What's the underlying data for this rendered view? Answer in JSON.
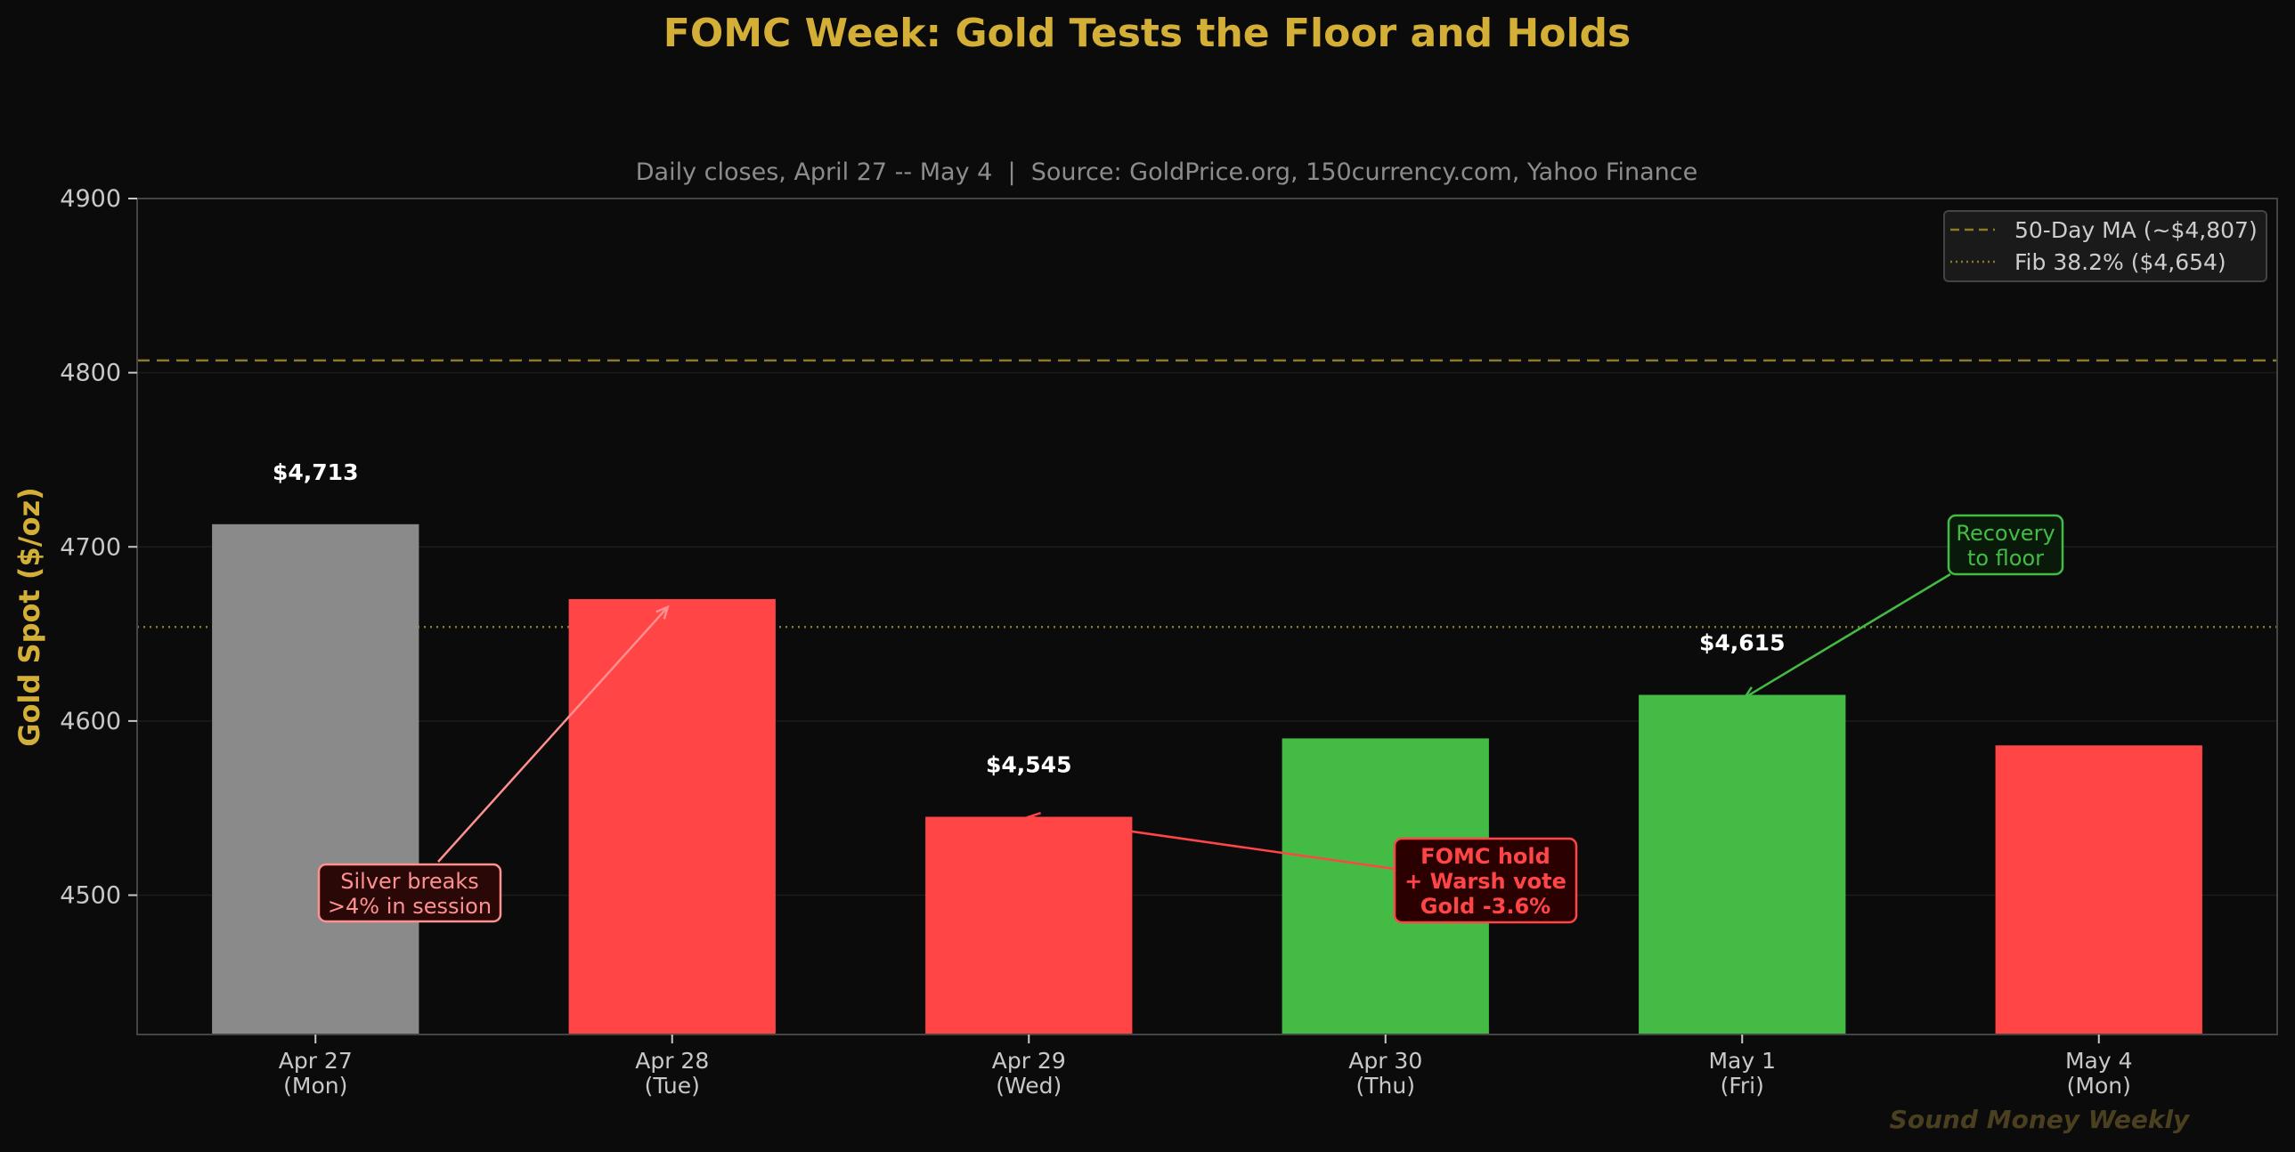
{
  "chart_data": {
    "type": "bar",
    "title": "FOMC Week: Gold Tests the Floor and Holds",
    "subtitle": "Daily closes, April 27 -- May 4  |  Source: GoldPrice.org, 150currency.com, Yahoo Finance",
    "ylabel": "Gold Spot ($/oz)",
    "xlabel": "",
    "ylim": [
      4420,
      4900
    ],
    "yticks": [
      4500,
      4600,
      4700,
      4800,
      4900
    ],
    "grid": true,
    "categories": [
      {
        "line1": "Apr 27",
        "line2": "(Mon)"
      },
      {
        "line1": "Apr 28",
        "line2": "(Tue)"
      },
      {
        "line1": "Apr 29",
        "line2": "(Wed)"
      },
      {
        "line1": "Apr 30",
        "line2": "(Thu)"
      },
      {
        "line1": "May 1",
        "line2": "(Fri)"
      },
      {
        "line1": "May 4",
        "line2": "(Mon)"
      }
    ],
    "values": [
      4713,
      4670,
      4545,
      4590,
      4615,
      4586
    ],
    "bar_colors": [
      "#8a8a8a",
      "#ff4545",
      "#ff4545",
      "#44bb44",
      "#44bb44",
      "#ff4545"
    ],
    "data_labels": [
      {
        "index": 0,
        "text": "$4,713"
      },
      {
        "index": 2,
        "text": "$4,545"
      },
      {
        "index": 4,
        "text": "$4,615"
      }
    ],
    "reference_lines": [
      {
        "name": "50-Day MA (~$4,807)",
        "value": 4807,
        "style": "dashed",
        "color": "#8a7a2a"
      },
      {
        "name": "Fib 38.2% ($4,654)",
        "value": 4654,
        "style": "dotted",
        "color": "#8a7a2a"
      }
    ],
    "legend_position": "top-right",
    "annotations": [
      {
        "lines": [
          "Silver breaks",
          ">4% in session"
        ],
        "target": {
          "index": 1,
          "value": 4670
        },
        "color": "#ff9090",
        "fill": "#2a0808",
        "bold": false
      },
      {
        "lines": [
          "FOMC hold",
          "+ Warsh vote",
          "Gold -3.6%"
        ],
        "target": {
          "index": 2,
          "value": 4545
        },
        "color": "#ff4545",
        "fill": "#2a0000",
        "bold": true
      },
      {
        "lines": [
          "Recovery",
          "to floor"
        ],
        "target": {
          "index": 4,
          "value": 4615
        },
        "color": "#44bb44",
        "fill": "#0a1a0a",
        "bold": false
      }
    ],
    "watermark": "Sound Money Weekly"
  },
  "colors": {
    "background": "#0b0b0b",
    "title": "#d4af37",
    "subtitle": "#8c8c8c",
    "axis": "#444444",
    "tick_label": "#c8c8c8",
    "grid": "#1c1c1c",
    "legend_bg": "#1a1a1a",
    "legend_text": "#cccccc",
    "data_label": "#ffffff",
    "watermark": "#4a4020"
  }
}
